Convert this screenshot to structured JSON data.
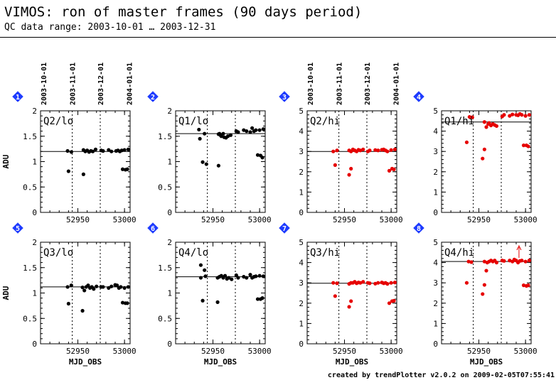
{
  "header": {
    "title": "VIMOS: ron of master frames (90 days period)",
    "subtitle": "QC data range: 2003-10-01 … 2003-12-31"
  },
  "footer": {
    "credit": "created by trendPlotter v2.0.2 on 2009-02-05T07:55:41"
  },
  "colors": {
    "lo_points": "#000000",
    "hi_points": "#e60000",
    "badge": "#1e3cff",
    "reference_line": "#000000"
  },
  "icons": {
    "panel_badge": "diamond-number-icon",
    "outlier_marker": "up-arrow-icon"
  },
  "date_axis": {
    "labels": [
      "2003-10-01",
      "2003-11-01",
      "2003-12-01",
      "2004-01-01"
    ],
    "guides": [
      "2003-11-01",
      "2003-12-01"
    ]
  },
  "chart_data": [
    {
      "type": "scatter",
      "badge": "1",
      "label": "Q2/lo",
      "ylabel": "ADU",
      "xlabel": "",
      "xlim": [
        52910,
        53006
      ],
      "ylim": [
        0,
        2
      ],
      "yticks": [
        "0",
        "0.5",
        "1",
        "1.5",
        "2"
      ],
      "xticks": [
        "52950",
        "53000"
      ],
      "reference": 1.2,
      "points": [
        [
          52939,
          1.21
        ],
        [
          52940,
          0.81
        ],
        [
          52943,
          1.19
        ],
        [
          52956,
          1.23
        ],
        [
          52956,
          0.75
        ],
        [
          52958,
          1.2
        ],
        [
          52960,
          1.22
        ],
        [
          52962,
          1.19
        ],
        [
          52964,
          1.21
        ],
        [
          52966,
          1.2
        ],
        [
          52969,
          1.24
        ],
        [
          52975,
          1.22
        ],
        [
          52977,
          1.21
        ],
        [
          52983,
          1.23
        ],
        [
          52986,
          1.2
        ],
        [
          52991,
          1.21
        ],
        [
          52993,
          1.22
        ],
        [
          52995,
          1.2
        ],
        [
          52997,
          1.22
        ],
        [
          53000,
          1.23
        ],
        [
          52998,
          0.85
        ],
        [
          53001,
          0.84
        ],
        [
          53003,
          0.85
        ],
        [
          53004,
          1.24
        ]
      ]
    },
    {
      "type": "scatter",
      "badge": "2",
      "label": "Q1/lo",
      "ylabel": "",
      "xlabel": "",
      "xlim": [
        52910,
        53006
      ],
      "ylim": [
        0,
        2
      ],
      "yticks": [
        "0",
        "0.5",
        "1",
        "1.5",
        "2"
      ],
      "xticks": [
        "52950",
        "53000"
      ],
      "reference": 1.55,
      "points": [
        [
          52935,
          1.63
        ],
        [
          52936,
          1.45
        ],
        [
          52939,
          0.99
        ],
        [
          52941,
          1.55
        ],
        [
          52943,
          0.95
        ],
        [
          52956,
          1.54
        ],
        [
          52956,
          0.92
        ],
        [
          52957,
          1.55
        ],
        [
          52958,
          1.52
        ],
        [
          52959,
          1.5
        ],
        [
          52961,
          1.55
        ],
        [
          52962,
          1.48
        ],
        [
          52964,
          1.47
        ],
        [
          52966,
          1.5
        ],
        [
          52969,
          1.52
        ],
        [
          52975,
          1.6
        ],
        [
          52977,
          1.58
        ],
        [
          52983,
          1.62
        ],
        [
          52986,
          1.6
        ],
        [
          52990,
          1.58
        ],
        [
          52992,
          1.66
        ],
        [
          52994,
          1.6
        ],
        [
          52996,
          1.62
        ],
        [
          52998,
          1.13
        ],
        [
          53000,
          1.62
        ],
        [
          53001,
          1.12
        ],
        [
          53003,
          1.08
        ],
        [
          53004,
          1.64
        ]
      ]
    },
    {
      "type": "scatter",
      "badge": "3",
      "label": "Q2/hi",
      "ylabel": "",
      "xlabel": "",
      "xlim": [
        52910,
        53006
      ],
      "ylim": [
        0,
        5
      ],
      "yticks": [
        "0",
        "1",
        "2",
        "3",
        "4",
        "5"
      ],
      "xticks": [
        "52950",
        "53000"
      ],
      "reference": 3.0,
      "points": [
        [
          52938,
          3.0
        ],
        [
          52940,
          2.33
        ],
        [
          52942,
          3.05
        ],
        [
          52955,
          3.05
        ],
        [
          52955,
          1.85
        ],
        [
          52957,
          2.15
        ],
        [
          52957,
          3.0
        ],
        [
          52959,
          3.1
        ],
        [
          52961,
          3.05
        ],
        [
          52963,
          3.0
        ],
        [
          52965,
          3.08
        ],
        [
          52967,
          3.05
        ],
        [
          52970,
          3.1
        ],
        [
          52975,
          3.0
        ],
        [
          52977,
          3.05
        ],
        [
          52983,
          3.07
        ],
        [
          52986,
          3.05
        ],
        [
          52990,
          3.08
        ],
        [
          52992,
          3.1
        ],
        [
          52994,
          3.05
        ],
        [
          52996,
          3.0
        ],
        [
          52998,
          2.05
        ],
        [
          53000,
          3.07
        ],
        [
          53001,
          2.15
        ],
        [
          53003,
          2.12
        ],
        [
          53004,
          3.1
        ]
      ]
    },
    {
      "type": "scatter",
      "badge": "4",
      "label": "Q1/hi",
      "ylabel": "",
      "xlabel": "",
      "xlim": [
        52910,
        53006
      ],
      "ylim": [
        0,
        5
      ],
      "yticks": [
        "0",
        "1",
        "2",
        "3",
        "4",
        "5"
      ],
      "xticks": [
        "52950",
        "53000"
      ],
      "reference": 4.45,
      "points": [
        [
          52937,
          3.45
        ],
        [
          52940,
          4.7
        ],
        [
          52943,
          4.68
        ],
        [
          52954,
          2.65
        ],
        [
          52956,
          3.1
        ],
        [
          52956,
          4.45
        ],
        [
          52958,
          4.2
        ],
        [
          52960,
          4.35
        ],
        [
          52961,
          4.4
        ],
        [
          52963,
          4.28
        ],
        [
          52965,
          4.35
        ],
        [
          52967,
          4.3
        ],
        [
          52969,
          4.25
        ],
        [
          52975,
          4.72
        ],
        [
          52977,
          4.8
        ],
        [
          52983,
          4.75
        ],
        [
          52986,
          4.82
        ],
        [
          52990,
          4.8
        ],
        [
          52992,
          4.78
        ],
        [
          52994,
          4.85
        ],
        [
          52996,
          4.8
        ],
        [
          52998,
          3.3
        ],
        [
          53000,
          4.75
        ],
        [
          53001,
          3.3
        ],
        [
          53003,
          3.25
        ],
        [
          53004,
          4.8
        ]
      ]
    },
    {
      "type": "scatter",
      "badge": "5",
      "label": "Q3/lo",
      "ylabel": "ADU",
      "xlabel": "MJD_OBS",
      "xlim": [
        52910,
        53006
      ],
      "ylim": [
        0,
        2
      ],
      "yticks": [
        "0",
        "0.5",
        "1",
        "1.5",
        "2"
      ],
      "xticks": [
        "52950",
        "53000"
      ],
      "reference": 1.12,
      "points": [
        [
          52939,
          1.12
        ],
        [
          52940,
          0.79
        ],
        [
          52943,
          1.15
        ],
        [
          52955,
          1.11
        ],
        [
          52955,
          0.65
        ],
        [
          52957,
          1.05
        ],
        [
          52959,
          1.12
        ],
        [
          52961,
          1.15
        ],
        [
          52963,
          1.1
        ],
        [
          52965,
          1.12
        ],
        [
          52967,
          1.08
        ],
        [
          52970,
          1.13
        ],
        [
          52975,
          1.12
        ],
        [
          52977,
          1.12
        ],
        [
          52983,
          1.1
        ],
        [
          52986,
          1.13
        ],
        [
          52990,
          1.16
        ],
        [
          52992,
          1.15
        ],
        [
          52994,
          1.1
        ],
        [
          52996,
          1.12
        ],
        [
          52998,
          0.81
        ],
        [
          53000,
          1.1
        ],
        [
          53001,
          0.8
        ],
        [
          53003,
          0.8
        ],
        [
          53004,
          1.12
        ]
      ]
    },
    {
      "type": "scatter",
      "badge": "6",
      "label": "Q4/lo",
      "ylabel": "",
      "xlabel": "MJD_OBS",
      "xlim": [
        52910,
        53006
      ],
      "ylim": [
        0,
        2
      ],
      "yticks": [
        "0",
        "0.5",
        "1",
        "1.5",
        "2"
      ],
      "xticks": [
        "52950",
        "53000"
      ],
      "reference": 1.32,
      "points": [
        [
          52937,
          1.55
        ],
        [
          52937,
          1.3
        ],
        [
          52939,
          0.85
        ],
        [
          52941,
          1.45
        ],
        [
          52942,
          1.33
        ],
        [
          52955,
          1.3
        ],
        [
          52955,
          0.82
        ],
        [
          52957,
          1.32
        ],
        [
          52959,
          1.34
        ],
        [
          52961,
          1.3
        ],
        [
          52963,
          1.34
        ],
        [
          52965,
          1.28
        ],
        [
          52967,
          1.3
        ],
        [
          52970,
          1.27
        ],
        [
          52975,
          1.35
        ],
        [
          52977,
          1.3
        ],
        [
          52983,
          1.32
        ],
        [
          52986,
          1.3
        ],
        [
          52990,
          1.36
        ],
        [
          52992,
          1.3
        ],
        [
          52994,
          1.32
        ],
        [
          52996,
          1.33
        ],
        [
          52998,
          0.88
        ],
        [
          53000,
          1.34
        ],
        [
          53001,
          0.88
        ],
        [
          53003,
          0.9
        ],
        [
          53004,
          1.33
        ]
      ]
    },
    {
      "type": "scatter",
      "badge": "7",
      "label": "Q3/hi",
      "ylabel": "",
      "xlabel": "MJD_OBS",
      "xlim": [
        52910,
        53006
      ],
      "ylim": [
        0,
        5
      ],
      "yticks": [
        "0",
        "1",
        "2",
        "3",
        "4",
        "5"
      ],
      "xticks": [
        "52950",
        "53000"
      ],
      "reference": 2.98,
      "points": [
        [
          52938,
          3.0
        ],
        [
          52940,
          2.35
        ],
        [
          52942,
          2.98
        ],
        [
          52955,
          2.95
        ],
        [
          52955,
          1.82
        ],
        [
          52957,
          2.1
        ],
        [
          52957,
          3.0
        ],
        [
          52959,
          3.0
        ],
        [
          52961,
          3.05
        ],
        [
          52963,
          2.98
        ],
        [
          52965,
          3.02
        ],
        [
          52967,
          3.0
        ],
        [
          52970,
          3.05
        ],
        [
          52975,
          3.0
        ],
        [
          52977,
          2.98
        ],
        [
          52983,
          2.96
        ],
        [
          52986,
          3.0
        ],
        [
          52990,
          3.02
        ],
        [
          52992,
          2.98
        ],
        [
          52994,
          3.0
        ],
        [
          52996,
          2.95
        ],
        [
          52998,
          2.0
        ],
        [
          53000,
          3.0
        ],
        [
          53001,
          2.1
        ],
        [
          53003,
          2.12
        ],
        [
          53004,
          3.02
        ]
      ]
    },
    {
      "type": "scatter",
      "badge": "8",
      "label": "Q4/hi",
      "ylabel": "",
      "xlabel": "MJD_OBS",
      "xlim": [
        52910,
        53006
      ],
      "ylim": [
        0,
        5
      ],
      "yticks": [
        "0",
        "1",
        "2",
        "3",
        "4",
        "5"
      ],
      "xticks": [
        "52950",
        "53000"
      ],
      "reference": 4.05,
      "points": [
        [
          52937,
          3.0
        ],
        [
          52939,
          4.05
        ],
        [
          52942,
          4.02
        ],
        [
          52954,
          2.45
        ],
        [
          52956,
          2.9
        ],
        [
          52956,
          4.05
        ],
        [
          52958,
          3.6
        ],
        [
          52959,
          4.0
        ],
        [
          52961,
          4.05
        ],
        [
          52963,
          4.1
        ],
        [
          52965,
          4.05
        ],
        [
          52967,
          4.1
        ],
        [
          52969,
          4.0
        ],
        [
          52975,
          4.1
        ],
        [
          52977,
          4.08
        ],
        [
          52983,
          4.1
        ],
        [
          52986,
          4.05
        ],
        [
          52988,
          4.15
        ],
        [
          52990,
          4.1
        ],
        [
          52992,
          4.0
        ],
        [
          52994,
          4.08
        ],
        [
          52996,
          4.1
        ],
        [
          52998,
          2.88
        ],
        [
          53000,
          4.05
        ],
        [
          53001,
          2.85
        ],
        [
          53003,
          2.88
        ],
        [
          53004,
          4.1
        ]
      ],
      "outliers": [
        52993
      ]
    }
  ]
}
